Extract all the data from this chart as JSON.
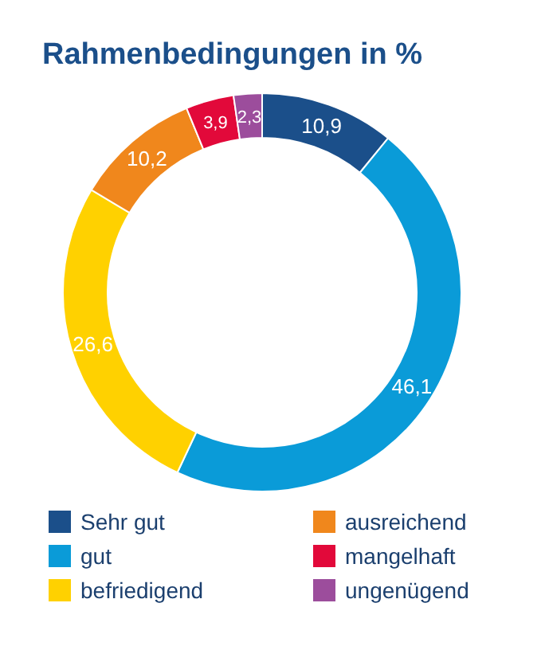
{
  "chart_data": {
    "type": "donut",
    "title": "Rahmenbedingungen in %",
    "categories": [
      "Sehr gut",
      "gut",
      "befriedigend",
      "ausreichend",
      "mangelhaft",
      "ungenügend"
    ],
    "values": [
      10.9,
      46.1,
      26.6,
      10.2,
      3.9,
      2.3
    ],
    "value_labels": [
      "10,9",
      "46,1",
      "26,6",
      "10,2",
      "3,9",
      "2,3"
    ],
    "colors": [
      "#1b4f8a",
      "#0a9bd8",
      "#ffd100",
      "#f0871c",
      "#e2093a",
      "#9c4d9c"
    ],
    "legend": "bottom"
  }
}
